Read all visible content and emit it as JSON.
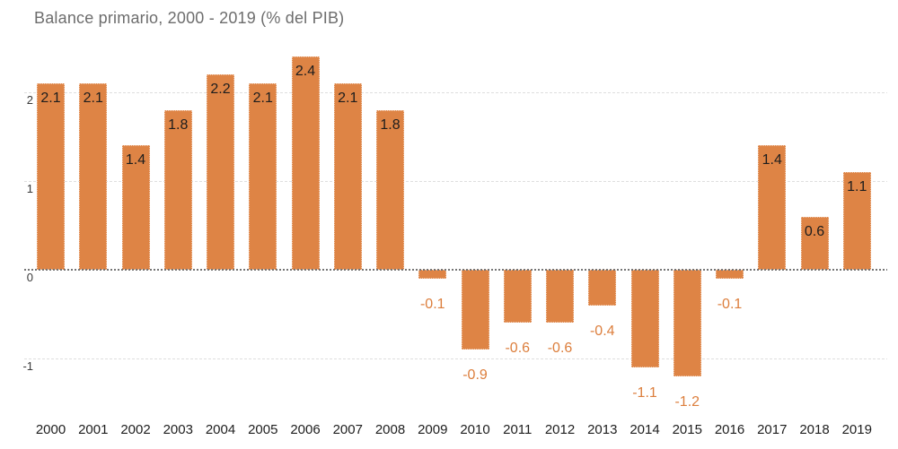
{
  "title": "Balance primario, 2000 - 2019 (% del PIB)",
  "colors": {
    "bar": "#DE8445",
    "positive_value_label": "#1d1d1d",
    "negative_value_label": "#DC7E3C",
    "title_text": "#6d6d6d",
    "y_tick_text": "#3a3a3a",
    "x_tick_text": "#1e1e1e",
    "gridline": "#dedede",
    "zero_line": "#757575"
  },
  "chart_data": {
    "type": "bar",
    "title": "Balance primario, 2000 - 2019 (% del PIB)",
    "categories": [
      "2000",
      "2001",
      "2002",
      "2003",
      "2004",
      "2005",
      "2006",
      "2007",
      "2008",
      "2009",
      "2010",
      "2011",
      "2012",
      "2013",
      "2014",
      "2015",
      "2016",
      "2017",
      "2018",
      "2019"
    ],
    "values": [
      2.1,
      2.1,
      1.4,
      1.8,
      2.2,
      2.1,
      2.4,
      2.1,
      1.8,
      -0.1,
      -0.9,
      -0.6,
      -0.6,
      -0.4,
      -1.1,
      -1.2,
      -0.1,
      1.4,
      0.6,
      1.1
    ],
    "value_labels": [
      "2.1",
      "2.1",
      "1.4",
      "1.8",
      "2.2",
      "2.1",
      "2.4",
      "2.1",
      "1.8",
      "-0.1",
      "-0.9",
      "-0.6",
      "-0.6",
      "-0.4",
      "-1.1",
      "-1.2",
      "-0.1",
      "1.4",
      "0.6",
      "1.1"
    ],
    "y_ticks": [
      2,
      1,
      0,
      -1
    ],
    "y_tick_labels": [
      "2",
      "1",
      "0",
      "-1"
    ],
    "ylim": [
      -1.45,
      2.45
    ],
    "xlabel": "",
    "ylabel": "",
    "grid": "horizontal",
    "legend": "none",
    "value_labels_shown": true
  }
}
